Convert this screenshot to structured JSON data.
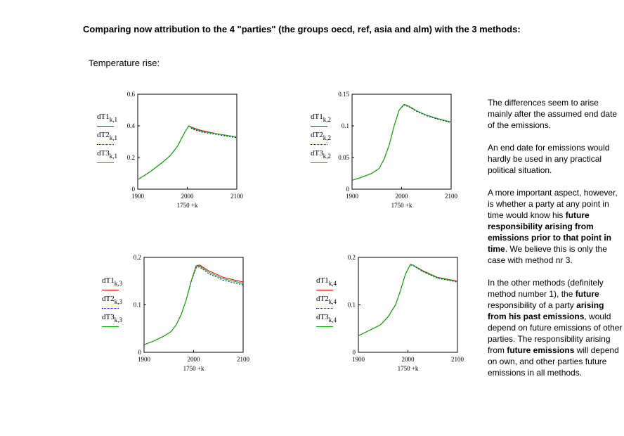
{
  "header": {
    "title": "Comparing now attribution to the 4 \"parties\" (the groups oecd, ref, asia and alm) with the 3 methods:",
    "subtitle": "Temperature rise:"
  },
  "legend": [
    {
      "name": "dT1",
      "sub1": "k,1",
      "sub2": "k,2",
      "sub3": "k,3",
      "sub4": "k,4",
      "color": "#e00000",
      "style": "solid"
    },
    {
      "name": "dT2",
      "sub1": "k,1",
      "sub2": "k,2",
      "sub3": "k,3",
      "sub4": "k,4",
      "color": "#0000c0",
      "style": "dotted"
    },
    {
      "name": "dT3",
      "sub1": "k,1",
      "sub2": "k,2",
      "sub3": "k,3",
      "sub4": "k,4",
      "color": "#00b000",
      "style": "solid"
    }
  ],
  "chart_data": [
    {
      "type": "line",
      "xlabel": "1750 +k",
      "xlim": [
        1900,
        2100
      ],
      "ylim": [
        0,
        0.6
      ],
      "xticks": [
        "1900",
        "2000",
        "2100"
      ],
      "yticks": [
        "0",
        "0.2",
        "0.4",
        "0.6"
      ],
      "x": [
        1900,
        1925,
        1950,
        1965,
        1980,
        1995,
        2003,
        2010,
        2030,
        2060,
        2100
      ],
      "series": [
        {
          "name": "dT1",
          "color": "#e00000",
          "dash": "",
          "values": [
            0.06,
            0.11,
            0.17,
            0.21,
            0.27,
            0.36,
            0.4,
            0.39,
            0.37,
            0.35,
            0.33
          ]
        },
        {
          "name": "dT2",
          "color": "#0000c0",
          "dash": "2,2",
          "values": [
            0.06,
            0.11,
            0.17,
            0.21,
            0.27,
            0.36,
            0.4,
            0.38,
            0.36,
            0.345,
            0.325
          ]
        },
        {
          "name": "dT3",
          "color": "#00b000",
          "dash": "",
          "values": [
            0.06,
            0.11,
            0.17,
            0.21,
            0.27,
            0.36,
            0.4,
            0.385,
            0.365,
            0.35,
            0.33
          ]
        }
      ]
    },
    {
      "type": "line",
      "xlabel": "1750 +k",
      "xlim": [
        1900,
        2100
      ],
      "ylim": [
        0,
        0.15
      ],
      "xticks": [
        "1900",
        "2000",
        "2100"
      ],
      "yticks": [
        "0",
        "0.05",
        "0.1",
        "0.15"
      ],
      "x": [
        1900,
        1920,
        1940,
        1955,
        1965,
        1975,
        1985,
        1995,
        2005,
        2015,
        2030,
        2050,
        2075,
        2100
      ],
      "series": [
        {
          "name": "dT1",
          "color": "#e00000",
          "dash": "",
          "values": [
            0.014,
            0.019,
            0.025,
            0.033,
            0.048,
            0.07,
            0.1,
            0.125,
            0.134,
            0.131,
            0.124,
            0.117,
            0.111,
            0.106
          ]
        },
        {
          "name": "dT2",
          "color": "#0000c0",
          "dash": "2,2",
          "values": [
            0.014,
            0.019,
            0.025,
            0.033,
            0.048,
            0.07,
            0.1,
            0.125,
            0.133,
            0.13,
            0.123,
            0.116,
            0.11,
            0.105
          ]
        },
        {
          "name": "dT3",
          "color": "#00b000",
          "dash": "",
          "values": [
            0.014,
            0.019,
            0.025,
            0.033,
            0.048,
            0.07,
            0.1,
            0.125,
            0.134,
            0.131,
            0.124,
            0.117,
            0.111,
            0.106
          ]
        }
      ]
    },
    {
      "type": "line",
      "xlabel": "1750 +k",
      "xlim": [
        1900,
        2100
      ],
      "ylim": [
        0,
        0.2
      ],
      "xticks": [
        "1900",
        "2000",
        "2100"
      ],
      "yticks": [
        "0",
        "0.1",
        "0.2"
      ],
      "x": [
        1900,
        1920,
        1940,
        1955,
        1965,
        1975,
        1985,
        1995,
        2005,
        2012,
        2030,
        2060,
        2100
      ],
      "series": [
        {
          "name": "dT1",
          "color": "#e00000",
          "dash": "",
          "values": [
            0.016,
            0.024,
            0.034,
            0.044,
            0.058,
            0.08,
            0.11,
            0.15,
            0.182,
            0.184,
            0.172,
            0.158,
            0.148
          ]
        },
        {
          "name": "dT2",
          "color": "#0000c0",
          "dash": "2,2",
          "values": [
            0.016,
            0.024,
            0.034,
            0.044,
            0.058,
            0.08,
            0.11,
            0.148,
            0.178,
            0.18,
            0.166,
            0.152,
            0.142
          ]
        },
        {
          "name": "dT3",
          "color": "#00b000",
          "dash": "",
          "values": [
            0.016,
            0.024,
            0.034,
            0.044,
            0.058,
            0.08,
            0.11,
            0.149,
            0.18,
            0.182,
            0.169,
            0.155,
            0.145
          ]
        }
      ]
    },
    {
      "type": "line",
      "xlabel": "1750 +k",
      "xlim": [
        1900,
        2100
      ],
      "ylim": [
        0,
        0.2
      ],
      "xticks": [
        "1900",
        "2000",
        "2100"
      ],
      "yticks": [
        "0",
        "0.1",
        "0.2"
      ],
      "x": [
        1900,
        1920,
        1945,
        1960,
        1975,
        1985,
        1995,
        2005,
        2010,
        2030,
        2060,
        2100
      ],
      "series": [
        {
          "name": "dT1",
          "color": "#e00000",
          "dash": "",
          "values": [
            0.035,
            0.045,
            0.058,
            0.075,
            0.1,
            0.13,
            0.165,
            0.185,
            0.184,
            0.172,
            0.158,
            0.15
          ]
        },
        {
          "name": "dT2",
          "color": "#0000c0",
          "dash": "2,2",
          "values": [
            0.035,
            0.045,
            0.058,
            0.075,
            0.1,
            0.13,
            0.165,
            0.184,
            0.183,
            0.17,
            0.156,
            0.148
          ]
        },
        {
          "name": "dT3",
          "color": "#00b000",
          "dash": "",
          "values": [
            0.035,
            0.045,
            0.058,
            0.075,
            0.1,
            0.13,
            0.165,
            0.185,
            0.184,
            0.171,
            0.157,
            0.149
          ]
        }
      ]
    }
  ],
  "side": {
    "p1": "The differences seem to arise mainly after the assumed end date of the emissions.",
    "p2": "An end date for emissions would hardly be used in any practical political situation.",
    "p3a": "A more important aspect, however, is whether a party at any point in time would know his ",
    "p3b": "future responsibility arising from emissions prior to that point in time",
    "p3c": ". We believe this is only the case with method nr 3.",
    "p4a": "In the other methods (definitely method number 1), the ",
    "p4b": "future",
    "p4c": " responsibility of a party ",
    "p4d": "arising from his past emissions",
    "p4e": ", would depend on future emissions of other parties. The responsibility arising from ",
    "p4f": "future emissions",
    "p4g": " will depend on own, and other parties future emissions in all methods."
  }
}
